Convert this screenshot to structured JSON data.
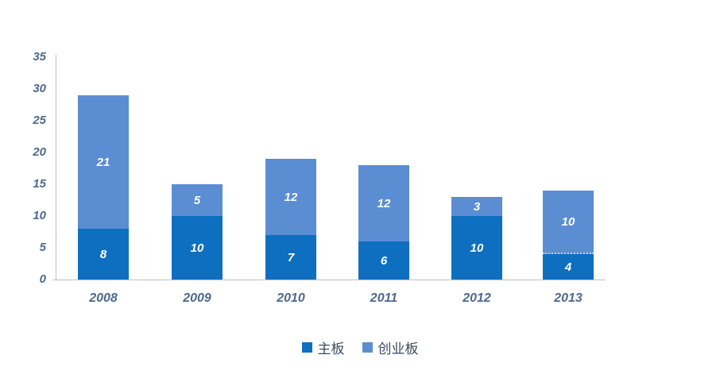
{
  "chart_data": {
    "type": "bar",
    "stacked": true,
    "title": "",
    "xlabel": "",
    "ylabel": "",
    "categories": [
      "2008",
      "2009",
      "2010",
      "2011",
      "2012",
      "2013"
    ],
    "series": [
      {
        "name": "主板",
        "slug": "main-board",
        "color": "#0E6FC1",
        "values": [
          8,
          10,
          7,
          6,
          10,
          4
        ]
      },
      {
        "name": "创业板",
        "slug": "chinext",
        "color": "#5B8DD3",
        "values": [
          21,
          5,
          12,
          12,
          3,
          10
        ]
      }
    ],
    "totals": [
      29,
      15,
      19,
      18,
      13,
      14
    ],
    "ylim": [
      0,
      35
    ],
    "yticks": [
      0,
      5,
      10,
      15,
      20,
      25,
      30,
      35
    ],
    "grid": false,
    "legend_position": "bottom",
    "divider_styles": [
      "solid",
      "solid",
      "solid",
      "solid",
      "solid",
      "dashed"
    ]
  },
  "colors": {
    "axis_line": "#BFBFBF",
    "axis_text": "#4E6A8D",
    "bar_label": "#FFFFFF",
    "legend_text": "#3B4A63",
    "background": "#FFFFFF"
  }
}
